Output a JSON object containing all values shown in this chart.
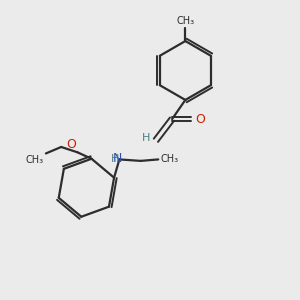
{
  "background_color": "#ebebeb",
  "bond_color": "#2d2d2d",
  "H_color": "#4a8080",
  "N_color": "#3050b0",
  "O_color": "#cc2200",
  "figsize": [
    3.0,
    3.0
  ],
  "dpi": 100,
  "xlim": [
    0,
    10
  ],
  "ylim": [
    0,
    10
  ]
}
